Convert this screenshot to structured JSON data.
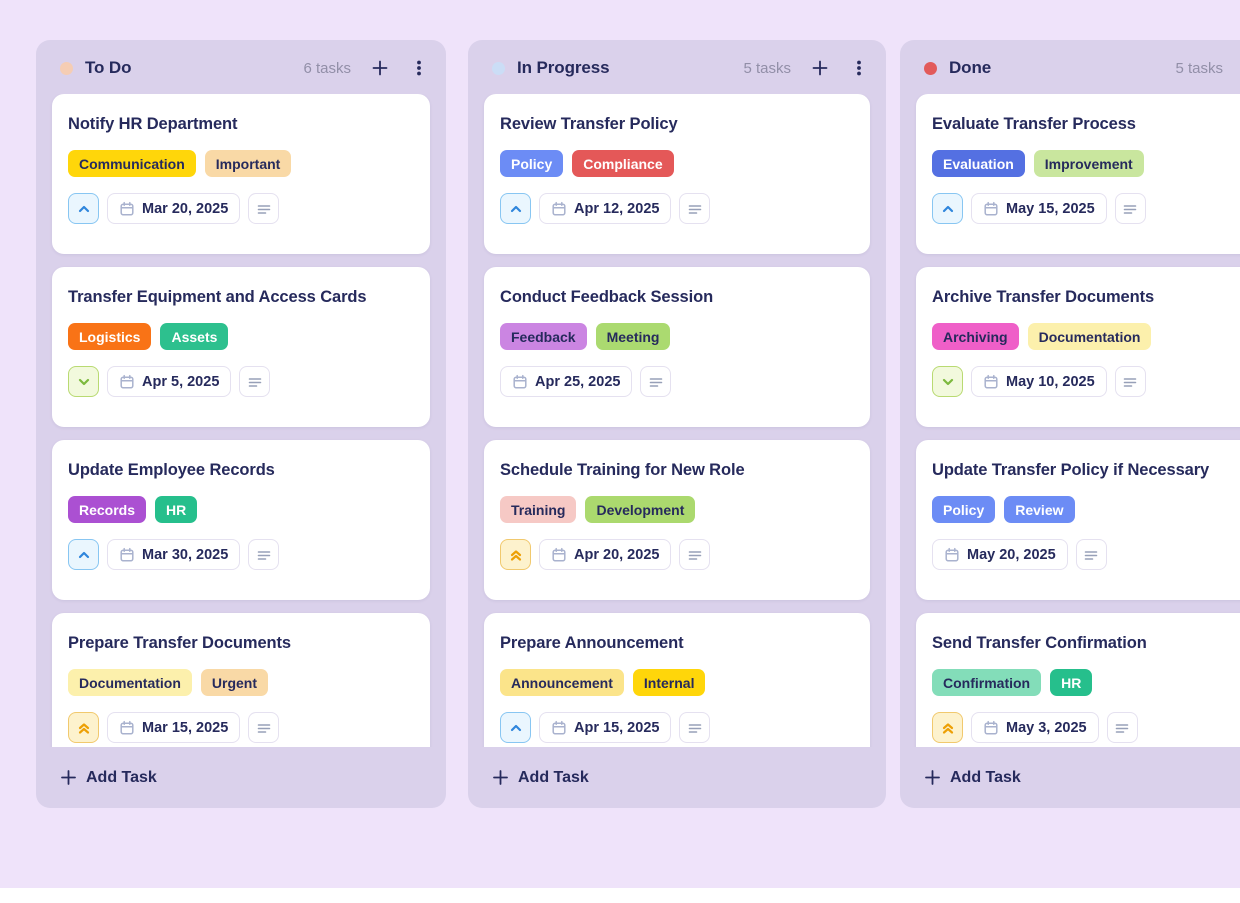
{
  "theme": {
    "page_bg": "#EFE3FA",
    "column_bg": "#DAD1EB",
    "card_bg": "#FFFFFF",
    "text_primary": "#262A5C",
    "text_muted": "#928FA8",
    "chip_border": "#E5E1F0",
    "bottom_strip": "#FFFFFF"
  },
  "labels": {
    "add_task": "Add Task"
  },
  "priority_styles": {
    "high": {
      "bg": "#EAF6FE",
      "border": "#88C6F2",
      "icon": "#2F86DC"
    },
    "low": {
      "bg": "#F2F9DD",
      "border": "#B9DA72",
      "icon": "#7DB93E"
    },
    "urgent": {
      "bg": "#FDF2CD",
      "border": "#F1C96E",
      "icon": "#EDA006"
    }
  },
  "board": {
    "columns": [
      {
        "title": "To Do",
        "dot_color": "#F5CDB4",
        "count_label": "6 tasks",
        "tasks": [
          {
            "title": "Notify HR Department",
            "tags": [
              {
                "label": "Communication",
                "bg": "#FFD60A",
                "fg": "#262A5C"
              },
              {
                "label": "Important",
                "bg": "#F9D9A6",
                "fg": "#262A5C"
              }
            ],
            "priority": "high",
            "due_date": "Mar 20, 2025"
          },
          {
            "title": "Transfer Equipment and Access Cards",
            "tags": [
              {
                "label": "Logistics",
                "bg": "#F97316",
                "fg": "#FFFFFF"
              },
              {
                "label": "Assets",
                "bg": "#2DC08E",
                "fg": "#FFFFFF"
              }
            ],
            "priority": "low",
            "due_date": "Apr 5, 2025"
          },
          {
            "title": "Update Employee Records",
            "tags": [
              {
                "label": "Records",
                "bg": "#AB50D2",
                "fg": "#FFFFFF"
              },
              {
                "label": "HR",
                "bg": "#26BF8C",
                "fg": "#FFFFFF"
              }
            ],
            "priority": "high",
            "due_date": "Mar 30, 2025"
          },
          {
            "title": "Prepare Transfer Documents",
            "tags": [
              {
                "label": "Documentation",
                "bg": "#FCF0AC",
                "fg": "#262A5C"
              },
              {
                "label": "Urgent",
                "bg": "#F9D9A6",
                "fg": "#262A5C"
              }
            ],
            "priority": "urgent",
            "due_date": "Mar 15, 2025"
          }
        ]
      },
      {
        "title": "In Progress",
        "dot_color": "#CBDDF6",
        "count_label": "5 tasks",
        "tasks": [
          {
            "title": "Review Transfer Policy",
            "tags": [
              {
                "label": "Policy",
                "bg": "#6C8CF5",
                "fg": "#FFFFFF"
              },
              {
                "label": "Compliance",
                "bg": "#E45858",
                "fg": "#FFFFFF"
              }
            ],
            "priority": "high",
            "due_date": "Apr 12, 2025"
          },
          {
            "title": "Conduct Feedback Session",
            "tags": [
              {
                "label": "Feedback",
                "bg": "#CB85E2",
                "fg": "#262A5C"
              },
              {
                "label": "Meeting",
                "bg": "#ABDA70",
                "fg": "#262A5C"
              }
            ],
            "priority": "none",
            "due_date": "Apr 25, 2025"
          },
          {
            "title": "Schedule Training for New Role",
            "tags": [
              {
                "label": "Training",
                "bg": "#F6C9C5",
                "fg": "#262A5C"
              },
              {
                "label": "Development",
                "bg": "#ABD96E",
                "fg": "#262A5C"
              }
            ],
            "priority": "urgent",
            "due_date": "Apr 20, 2025"
          },
          {
            "title": "Prepare Announcement",
            "tags": [
              {
                "label": "Announcement",
                "bg": "#FBE48A",
                "fg": "#262A5C"
              },
              {
                "label": "Internal",
                "bg": "#FFD60A",
                "fg": "#262A5C"
              }
            ],
            "priority": "high",
            "due_date": "Apr 15, 2025"
          }
        ]
      },
      {
        "title": "Done",
        "dot_color": "#E25A5A",
        "count_label": "5 tasks",
        "tasks": [
          {
            "title": "Evaluate Transfer Process",
            "tags": [
              {
                "label": "Evaluation",
                "bg": "#5470E2",
                "fg": "#FFFFFF"
              },
              {
                "label": "Improvement",
                "bg": "#C9E69E",
                "fg": "#262A5C"
              }
            ],
            "priority": "high",
            "due_date": "May 15, 2025"
          },
          {
            "title": "Archive Transfer Documents",
            "tags": [
              {
                "label": "Archiving",
                "bg": "#EF5FC8",
                "fg": "#262A5C"
              },
              {
                "label": "Documentation",
                "bg": "#FCF0AC",
                "fg": "#262A5C"
              }
            ],
            "priority": "low",
            "due_date": "May 10, 2025"
          },
          {
            "title": "Update Transfer Policy if Necessary",
            "tags": [
              {
                "label": "Policy",
                "bg": "#6C8CF5",
                "fg": "#FFFFFF"
              },
              {
                "label": "Review",
                "bg": "#6C8CF5",
                "fg": "#FFFFFF"
              }
            ],
            "priority": "none",
            "due_date": "May 20, 2025"
          },
          {
            "title": "Send Transfer Confirmation",
            "tags": [
              {
                "label": "Confirmation",
                "bg": "#83DDB9",
                "fg": "#262A5C"
              },
              {
                "label": "HR",
                "bg": "#26BF8C",
                "fg": "#FFFFFF"
              }
            ],
            "priority": "urgent",
            "due_date": "May 3, 2025"
          }
        ]
      }
    ]
  }
}
